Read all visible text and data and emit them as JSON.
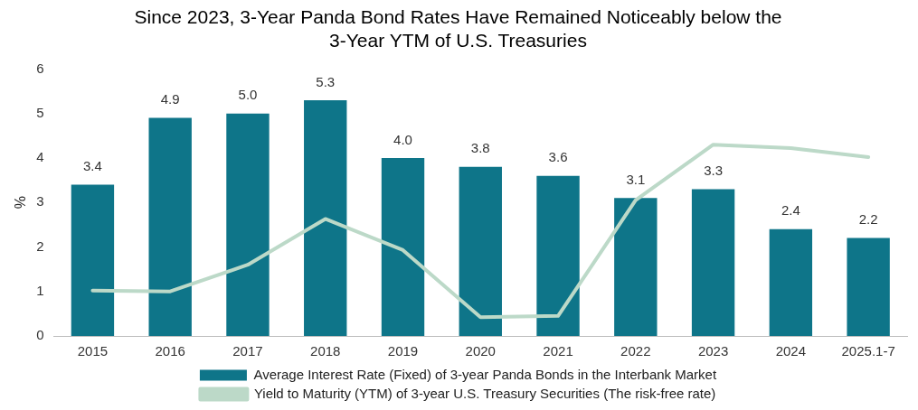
{
  "chart_data": {
    "type": "bar",
    "title": "Since 2023, 3-Year Panda Bond Rates Have Remained Noticeably below the 3-Year YTM of U.S. Treasuries",
    "ylabel": "%",
    "categories": [
      "2015",
      "2016",
      "2017",
      "2018",
      "2019",
      "2020",
      "2021",
      "2022",
      "2023",
      "2024",
      "2025.1-7"
    ],
    "series": [
      {
        "name": "Average Interest Rate (Fixed) of 3-year Panda Bonds in the Interbank Market",
        "color": "#0e7589",
        "values": [
          3.4,
          4.9,
          5.0,
          5.3,
          4.0,
          3.8,
          3.6,
          3.1,
          3.3,
          2.4,
          2.2
        ],
        "value_labels": [
          "3.4",
          "4.9",
          "5.0",
          "5.3",
          "4.0",
          "3.8",
          "3.6",
          "3.1",
          "3.3",
          "2.4",
          "2.2"
        ]
      },
      {
        "type": "line",
        "name": "Yield to Maturity (YTM) of 3-year U.S. Treasury Securities (The risk-free rate)",
        "color": "#bcd9c8",
        "values": [
          1.02,
          1.0,
          1.6,
          2.63,
          1.93,
          0.42,
          0.45,
          3.05,
          4.3,
          4.22,
          4.02
        ]
      }
    ],
    "ylim": [
      0,
      6
    ],
    "yticks": [
      0,
      1,
      2,
      3,
      4,
      5,
      6
    ],
    "legend": "bottom",
    "marker": "none",
    "line_style": "solid"
  }
}
